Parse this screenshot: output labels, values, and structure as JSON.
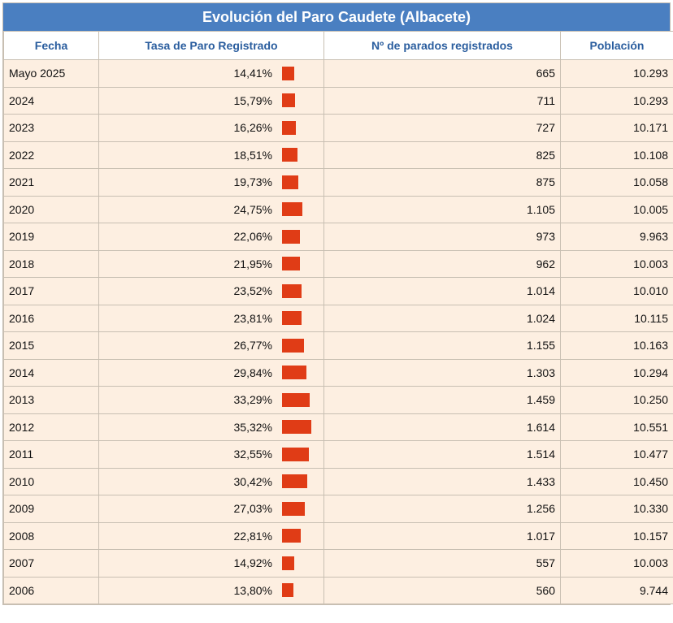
{
  "title": "Evolución del Paro Caudete (Albacete)",
  "columns": {
    "fecha": "Fecha",
    "tasa": "Tasa de Paro Registrado",
    "parados": "Nº de parados registrados",
    "poblacion": "Población"
  },
  "colors": {
    "header_bg": "#4a7fc1",
    "header_text": "#2a5d9e",
    "row_bg": "#fdefe1",
    "bar": "#e03c16"
  },
  "rows": [
    {
      "fecha": "Mayo 2025",
      "tasa": "14,41%",
      "tasa_value": 14.41,
      "parados": "665",
      "poblacion": "10.293"
    },
    {
      "fecha": "2024",
      "tasa": "15,79%",
      "tasa_value": 15.79,
      "parados": "711",
      "poblacion": "10.293"
    },
    {
      "fecha": "2023",
      "tasa": "16,26%",
      "tasa_value": 16.26,
      "parados": "727",
      "poblacion": "10.171"
    },
    {
      "fecha": "2022",
      "tasa": "18,51%",
      "tasa_value": 18.51,
      "parados": "825",
      "poblacion": "10.108"
    },
    {
      "fecha": "2021",
      "tasa": "19,73%",
      "tasa_value": 19.73,
      "parados": "875",
      "poblacion": "10.058"
    },
    {
      "fecha": "2020",
      "tasa": "24,75%",
      "tasa_value": 24.75,
      "parados": "1.105",
      "poblacion": "10.005"
    },
    {
      "fecha": "2019",
      "tasa": "22,06%",
      "tasa_value": 22.06,
      "parados": "973",
      "poblacion": "9.963"
    },
    {
      "fecha": "2018",
      "tasa": "21,95%",
      "tasa_value": 21.95,
      "parados": "962",
      "poblacion": "10.003"
    },
    {
      "fecha": "2017",
      "tasa": "23,52%",
      "tasa_value": 23.52,
      "parados": "1.014",
      "poblacion": "10.010"
    },
    {
      "fecha": "2016",
      "tasa": "23,81%",
      "tasa_value": 23.81,
      "parados": "1.024",
      "poblacion": "10.115"
    },
    {
      "fecha": "2015",
      "tasa": "26,77%",
      "tasa_value": 26.77,
      "parados": "1.155",
      "poblacion": "10.163"
    },
    {
      "fecha": "2014",
      "tasa": "29,84%",
      "tasa_value": 29.84,
      "parados": "1.303",
      "poblacion": "10.294"
    },
    {
      "fecha": "2013",
      "tasa": "33,29%",
      "tasa_value": 33.29,
      "parados": "1.459",
      "poblacion": "10.250"
    },
    {
      "fecha": "2012",
      "tasa": "35,32%",
      "tasa_value": 35.32,
      "parados": "1.614",
      "poblacion": "10.551"
    },
    {
      "fecha": "2011",
      "tasa": "32,55%",
      "tasa_value": 32.55,
      "parados": "1.514",
      "poblacion": "10.477"
    },
    {
      "fecha": "2010",
      "tasa": "30,42%",
      "tasa_value": 30.42,
      "parados": "1.433",
      "poblacion": "10.450"
    },
    {
      "fecha": "2009",
      "tasa": "27,03%",
      "tasa_value": 27.03,
      "parados": "1.256",
      "poblacion": "10.330"
    },
    {
      "fecha": "2008",
      "tasa": "22,81%",
      "tasa_value": 22.81,
      "parados": "1.017",
      "poblacion": "10.157"
    },
    {
      "fecha": "2007",
      "tasa": "14,92%",
      "tasa_value": 14.92,
      "parados": "557",
      "poblacion": "10.003"
    },
    {
      "fecha": "2006",
      "tasa": "13,80%",
      "tasa_value": 13.8,
      "parados": "560",
      "poblacion": "9.744"
    }
  ],
  "chart_data": {
    "type": "table",
    "title": "Evolución del Paro Caudete (Albacete)",
    "columns": [
      "Fecha",
      "Tasa de Paro Registrado",
      "Nº de parados registrados",
      "Población"
    ],
    "categories": [
      "Mayo 2025",
      "2024",
      "2023",
      "2022",
      "2021",
      "2020",
      "2019",
      "2018",
      "2017",
      "2016",
      "2015",
      "2014",
      "2013",
      "2012",
      "2011",
      "2010",
      "2009",
      "2008",
      "2007",
      "2006"
    ],
    "series": [
      {
        "name": "Tasa de Paro Registrado",
        "values": [
          14.41,
          15.79,
          16.26,
          18.51,
          19.73,
          24.75,
          22.06,
          21.95,
          23.52,
          23.81,
          26.77,
          29.84,
          33.29,
          35.32,
          32.55,
          30.42,
          27.03,
          22.81,
          14.92,
          13.8
        ]
      },
      {
        "name": "Nº de parados registrados",
        "values": [
          665,
          711,
          727,
          825,
          875,
          1105,
          973,
          962,
          1014,
          1024,
          1155,
          1303,
          1459,
          1614,
          1514,
          1433,
          1256,
          1017,
          557,
          560
        ]
      },
      {
        "name": "Población",
        "values": [
          10293,
          10293,
          10171,
          10108,
          10058,
          10005,
          9963,
          10003,
          10010,
          10115,
          10163,
          10294,
          10250,
          10551,
          10477,
          10450,
          10330,
          10157,
          10003,
          9744
        ]
      }
    ]
  }
}
